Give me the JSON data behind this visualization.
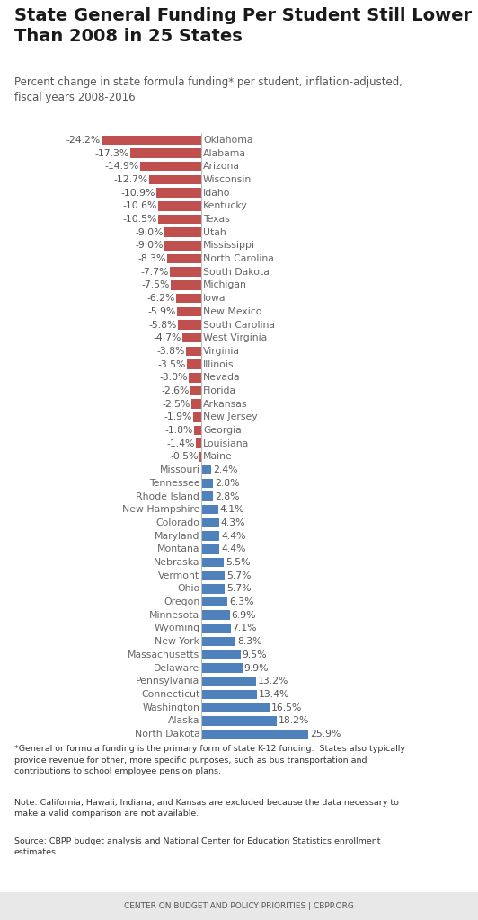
{
  "title": "State General Funding Per Student Still Lower\nThan 2008 in 25 States",
  "subtitle": "Percent change in state formula funding* per student, inflation-adjusted,\nfiscal years 2008-2016",
  "states": [
    "Oklahoma",
    "Alabama",
    "Arizona",
    "Wisconsin",
    "Idaho",
    "Kentucky",
    "Texas",
    "Utah",
    "Mississippi",
    "North Carolina",
    "South Dakota",
    "Michigan",
    "Iowa",
    "New Mexico",
    "South Carolina",
    "West Virginia",
    "Virginia",
    "Illinois",
    "Nevada",
    "Florida",
    "Arkansas",
    "New Jersey",
    "Georgia",
    "Louisiana",
    "Maine",
    "Missouri",
    "Tennessee",
    "Rhode Island",
    "New Hampshire",
    "Colorado",
    "Maryland",
    "Montana",
    "Nebraska",
    "Vermont",
    "Ohio",
    "Oregon",
    "Minnesota",
    "Wyoming",
    "New York",
    "Massachusetts",
    "Delaware",
    "Pennsylvania",
    "Connecticut",
    "Washington",
    "Alaska",
    "North Dakota"
  ],
  "values": [
    -24.2,
    -17.3,
    -14.9,
    -12.7,
    -10.9,
    -10.6,
    -10.5,
    -9.0,
    -9.0,
    -8.3,
    -7.7,
    -7.5,
    -6.2,
    -5.9,
    -5.8,
    -4.7,
    -3.8,
    -3.5,
    -3.0,
    -2.6,
    -2.5,
    -1.9,
    -1.8,
    -1.4,
    -0.5,
    2.4,
    2.8,
    2.8,
    4.1,
    4.3,
    4.4,
    4.4,
    5.5,
    5.7,
    5.7,
    6.3,
    6.9,
    7.1,
    8.3,
    9.5,
    9.9,
    13.2,
    13.4,
    16.5,
    18.2,
    25.9
  ],
  "neg_color": "#c0504d",
  "pos_color": "#4f81bd",
  "footnote1": "*General or formula funding is the primary form of state K-12 funding.  States also typically\nprovide revenue for other, more specific purposes, such as bus transportation and\ncontributions to school employee pension plans.",
  "footnote2": "Note: California, Hawaii, Indiana, and Kansas are excluded because the data necessary to\nmake a valid comparison are not available.",
  "footnote3": "Source: CBPP budget analysis and National Center for Education Statistics enrollment\nestimates.",
  "footer": "CENTER ON BUDGET AND POLICY PRIORITIES | CBPP.ORG",
  "title_fontsize": 14,
  "subtitle_fontsize": 8.5,
  "label_fontsize": 7.8,
  "bar_height": 0.72
}
